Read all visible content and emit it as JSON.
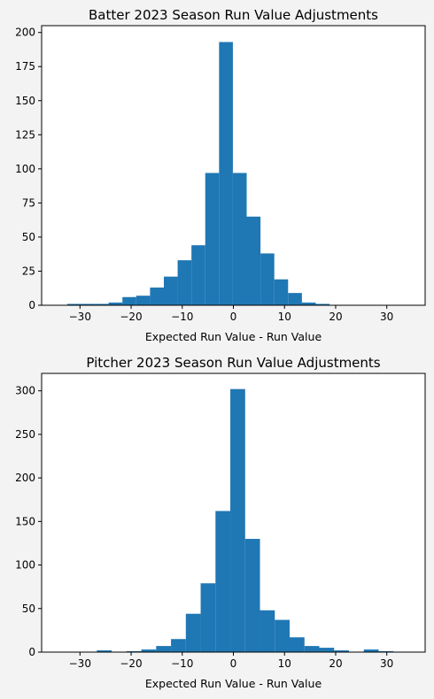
{
  "chart_data": [
    {
      "type": "bar",
      "title": "Batter 2023 Season Run Value Adjustments",
      "xlabel": "Expected Run Value - Run Value",
      "ylabel": "",
      "xlim": [
        -37.5,
        37.5
      ],
      "ylim": [
        0,
        205
      ],
      "xticks": [
        -30,
        -20,
        -10,
        0,
        10,
        20,
        30
      ],
      "yticks": [
        0,
        25,
        50,
        75,
        100,
        125,
        150,
        175,
        200
      ],
      "bin_edges": [
        -32.5,
        -29.8,
        -27.1,
        -24.4,
        -21.7,
        -19.0,
        -16.3,
        -13.6,
        -10.9,
        -8.2,
        -5.5,
        -2.8,
        -0.1,
        2.6,
        5.3,
        8.0,
        10.7,
        13.4,
        16.1,
        18.8,
        21.5
      ],
      "values": [
        1,
        1,
        1,
        2,
        6,
        7,
        13,
        21,
        33,
        44,
        97,
        193,
        97,
        65,
        38,
        19,
        9,
        2,
        1,
        0
      ],
      "grid": false,
      "legend": "none"
    },
    {
      "type": "bar",
      "title": "Pitcher 2023 Season Run Value Adjustments",
      "xlabel": "Expected Run Value - Run Value",
      "ylabel": "",
      "xlim": [
        -37.5,
        37.5
      ],
      "ylim": [
        0,
        320
      ],
      "xticks": [
        -30,
        -20,
        -10,
        0,
        10,
        20,
        30
      ],
      "yticks": [
        0,
        50,
        100,
        150,
        200,
        250,
        300
      ],
      "bin_edges": [
        -32.5,
        -29.6,
        -26.7,
        -23.8,
        -20.9,
        -18.0,
        -15.1,
        -12.2,
        -9.3,
        -6.4,
        -3.5,
        -0.6,
        2.3,
        5.2,
        8.1,
        11.0,
        13.9,
        16.8,
        19.7,
        22.6,
        25.5,
        28.4,
        31.3,
        34.2
      ],
      "values": [
        0,
        0,
        2,
        0,
        1,
        3,
        7,
        15,
        44,
        79,
        162,
        302,
        130,
        48,
        37,
        17,
        7,
        5,
        2,
        0,
        3,
        1,
        0
      ],
      "grid": false,
      "legend": "none"
    }
  ]
}
